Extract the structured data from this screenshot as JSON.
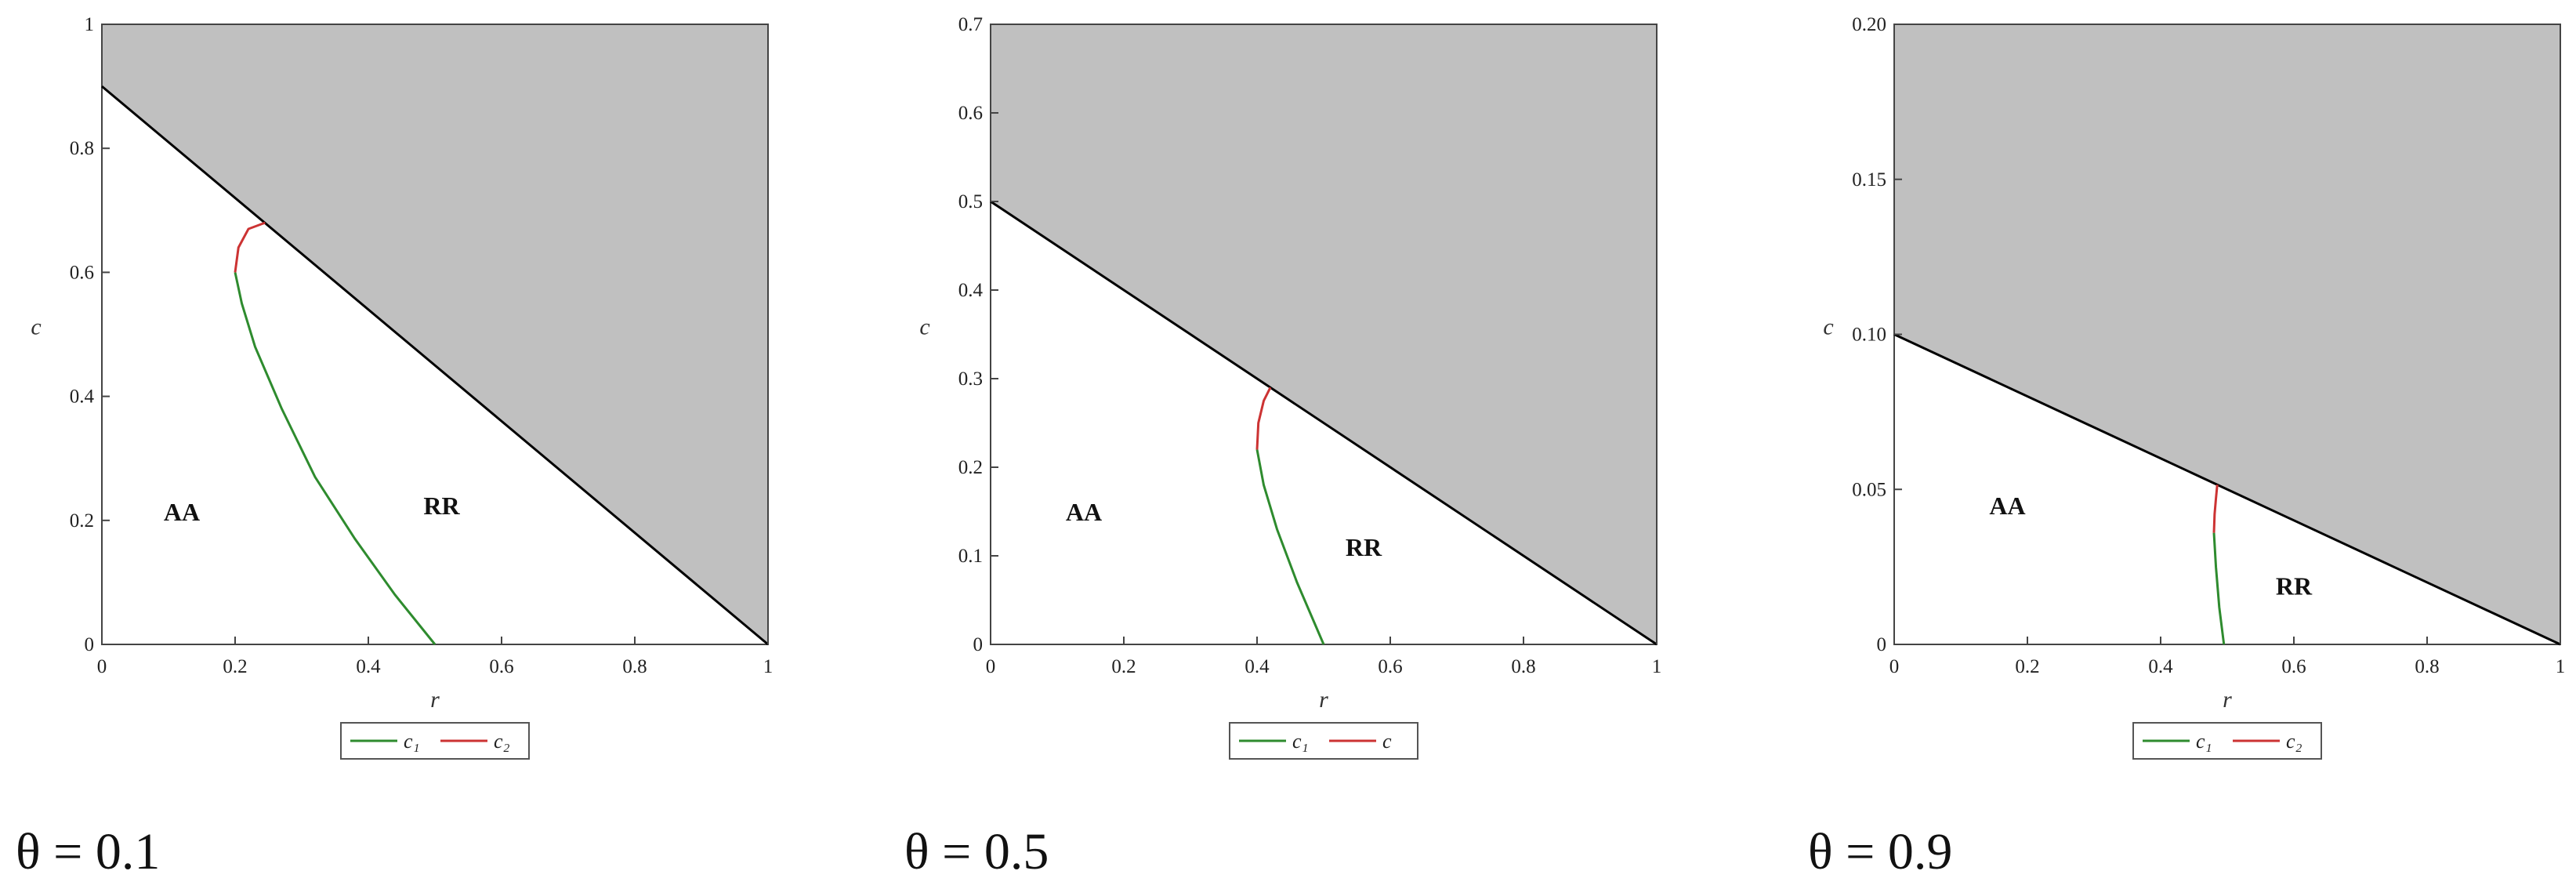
{
  "chart_data": [
    {
      "type": "line",
      "caption": "θ = 0.1",
      "xlabel": "r",
      "ylabel": "c",
      "xlim": [
        0,
        1
      ],
      "ylim": [
        0,
        1
      ],
      "xticks": [
        0,
        0.2,
        0.4,
        0.6,
        0.8,
        1
      ],
      "yticks": [
        0,
        0.2,
        0.4,
        0.6,
        0.8,
        1
      ],
      "boundary": {
        "color": "#000000",
        "fill": "#c0c0c0",
        "x": [
          0,
          1
        ],
        "values": [
          0.9,
          0
        ]
      },
      "series": [
        {
          "name": "c₁",
          "color": "#2e8b2e",
          "x": [
            0.5,
            0.44,
            0.38,
            0.32,
            0.27,
            0.23,
            0.21,
            0.2
          ],
          "values": [
            0,
            0.08,
            0.17,
            0.27,
            0.38,
            0.48,
            0.55,
            0.6
          ]
        },
        {
          "name": "c₂",
          "color": "#cc3333",
          "x": [
            0.2,
            0.205,
            0.22,
            0.245
          ],
          "values": [
            0.6,
            0.64,
            0.67,
            0.68
          ]
        }
      ],
      "annotations": [
        {
          "text": "AA",
          "x": 0.12,
          "y": 0.2
        },
        {
          "text": "RR",
          "x": 0.51,
          "y": 0.21
        }
      ]
    },
    {
      "type": "line",
      "caption": "θ = 0.5",
      "xlabel": "r",
      "ylabel": "c",
      "xlim": [
        0,
        1
      ],
      "ylim": [
        0,
        0.7
      ],
      "xticks": [
        0,
        0.2,
        0.4,
        0.6,
        0.8,
        1
      ],
      "yticks": [
        0,
        0.1,
        0.2,
        0.3,
        0.4,
        0.5,
        0.6,
        0.7
      ],
      "boundary": {
        "color": "#000000",
        "fill": "#c0c0c0",
        "x": [
          0,
          1
        ],
        "values": [
          0.5,
          0
        ]
      },
      "series": [
        {
          "name": "c₁",
          "color": "#2e8b2e",
          "x": [
            0.5,
            0.46,
            0.43,
            0.41,
            0.4
          ],
          "values": [
            0,
            0.07,
            0.13,
            0.18,
            0.22
          ]
        },
        {
          "name": "c",
          "color": "#cc3333",
          "x": [
            0.4,
            0.402,
            0.41,
            0.42
          ],
          "values": [
            0.22,
            0.25,
            0.275,
            0.29
          ]
        }
      ],
      "annotations": [
        {
          "text": "AA",
          "x": 0.14,
          "y": 0.14
        },
        {
          "text": "RR",
          "x": 0.56,
          "y": 0.1
        }
      ]
    },
    {
      "type": "line",
      "caption": "θ = 0.9",
      "xlabel": "r",
      "ylabel": "c",
      "xlim": [
        0,
        1
      ],
      "ylim": [
        0,
        0.2
      ],
      "xticks": [
        0,
        0.2,
        0.4,
        0.6,
        0.8,
        1
      ],
      "yticks": [
        0,
        0.05,
        {
          "value": 0.1,
          "label": "0.10"
        },
        0.15,
        {
          "value": 0.2,
          "label": "0.20"
        }
      ],
      "boundary": {
        "color": "#000000",
        "fill": "#c0c0c0",
        "x": [
          0,
          1
        ],
        "values": [
          0.1,
          0
        ]
      },
      "series": [
        {
          "name": "c₁",
          "color": "#2e8b2e",
          "x": [
            0.495,
            0.488,
            0.483,
            0.48
          ],
          "values": [
            0,
            0.012,
            0.025,
            0.036
          ]
        },
        {
          "name": "c₂",
          "color": "#cc3333",
          "x": [
            0.48,
            0.481,
            0.483,
            0.485
          ],
          "values": [
            0.036,
            0.042,
            0.047,
            0.0515
          ]
        }
      ],
      "annotations": [
        {
          "text": "AA",
          "x": 0.17,
          "y": 0.042
        },
        {
          "text": "RR",
          "x": 0.6,
          "y": 0.016
        }
      ]
    }
  ]
}
